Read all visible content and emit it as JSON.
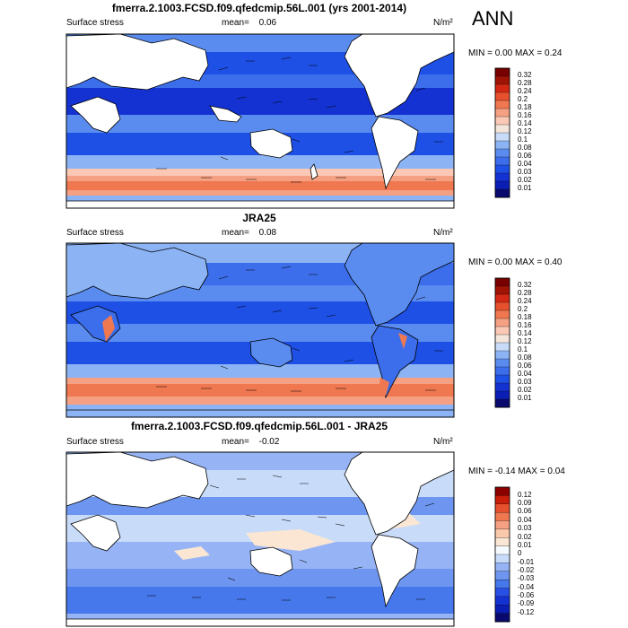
{
  "season": "ANN",
  "units": "N/m²",
  "panels": [
    {
      "title": "fmerra.2.1003.FCSD.f09.qfedcmip.56L.001 (yrs 2001-2014)",
      "variable": "Surface stress",
      "mean_label": "mean=",
      "mean_value": "0.06",
      "minmax_text": "MIN =   0.00 MAX =   0.24",
      "colorbar_labels": [
        "0.32",
        "0.28",
        "0.24",
        "0.2",
        "0.18",
        "0.16",
        "0.14",
        "0.12",
        "0.1",
        "0.08",
        "0.06",
        "0.04",
        "0.03",
        "0.02",
        "0.01"
      ]
    },
    {
      "title": "JRA25",
      "variable": "Surface stress",
      "mean_label": "mean=",
      "mean_value": "0.08",
      "minmax_text": "MIN =   0.00 MAX =   0.40",
      "colorbar_labels": [
        "0.32",
        "0.28",
        "0.24",
        "0.2",
        "0.18",
        "0.16",
        "0.14",
        "0.12",
        "0.1",
        "0.08",
        "0.06",
        "0.04",
        "0.03",
        "0.02",
        "0.01"
      ]
    },
    {
      "title": "fmerra.2.1003.FCSD.f09.qfedcmip.56L.001 - JRA25",
      "variable": "Surface stress",
      "mean_label": "mean=",
      "mean_value": "-0.02",
      "minmax_text": "MIN =  -0.14 MAX =   0.04",
      "colorbar_labels": [
        "0.12",
        "0.09",
        "0.06",
        "0.04",
        "0.03",
        "0.02",
        "0.01",
        "0",
        "-0.01",
        "-0.02",
        "-0.03",
        "-0.04",
        "-0.06",
        "-0.09",
        "-0.12"
      ]
    }
  ],
  "colors": {
    "abs_scale": [
      "#0a0a6e",
      "#0a1eb4",
      "#1432d2",
      "#1e50e6",
      "#3c6eeb",
      "#5a8cf0",
      "#8cb4f5",
      "#c8dcfa",
      "#f5e6dc",
      "#fac8b4",
      "#f5a082",
      "#f07850",
      "#e6502d",
      "#d22814",
      "#a01405",
      "#780000"
    ],
    "diff_scale": [
      "#0a0a6e",
      "#0a1eb4",
      "#1432d2",
      "#2850e6",
      "#4678eb",
      "#6e96f0",
      "#96b4f5",
      "#c8dcfa",
      "#f5faff",
      "#fae6d2",
      "#fac8aa",
      "#f5a082",
      "#f07850",
      "#e6502d",
      "#c81e0a",
      "#8c0000"
    ]
  }
}
